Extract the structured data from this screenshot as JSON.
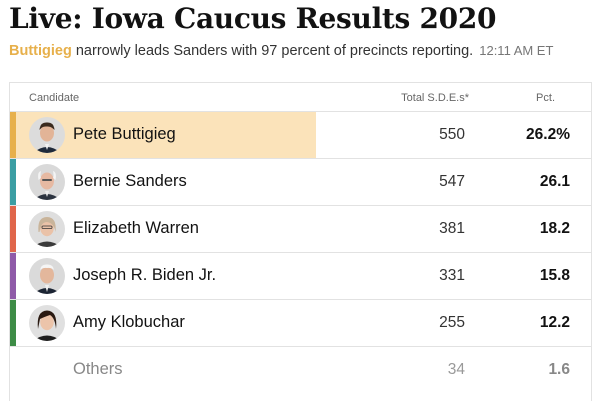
{
  "headline": "Live: Iowa Caucus Results 2020",
  "subhead": {
    "leader": "Buttigieg",
    "text": " narrowly leads Sanders with 97 percent of precincts reporting.",
    "timestamp": "12:11 AM ET"
  },
  "table": {
    "headers": {
      "candidate": "Candidate",
      "sde": "Total S.D.E.s*",
      "pct": "Pct."
    },
    "rows": [
      {
        "name": "Pete Buttigieg",
        "sde": "550",
        "pct": "26.2%",
        "color": "#e7b04b",
        "leader": true,
        "avatar": "buttigieg-portrait"
      },
      {
        "name": "Bernie Sanders",
        "sde": "547",
        "pct": "26.1",
        "color": "#3b9ea3",
        "leader": false,
        "avatar": "sanders-portrait"
      },
      {
        "name": "Elizabeth Warren",
        "sde": "381",
        "pct": "18.2",
        "color": "#e0664b",
        "leader": false,
        "avatar": "warren-portrait"
      },
      {
        "name": "Joseph R. Biden Jr.",
        "sde": "331",
        "pct": "15.8",
        "color": "#8f5aa8",
        "leader": false,
        "avatar": "biden-portrait"
      },
      {
        "name": "Amy Klobuchar",
        "sde": "255",
        "pct": "12.2",
        "color": "#3d8c46",
        "leader": false,
        "avatar": "klobuchar-portrait"
      },
      {
        "name": "Others",
        "sde": "34",
        "pct": "1.6",
        "color": "",
        "leader": false,
        "avatar": ""
      }
    ]
  }
}
